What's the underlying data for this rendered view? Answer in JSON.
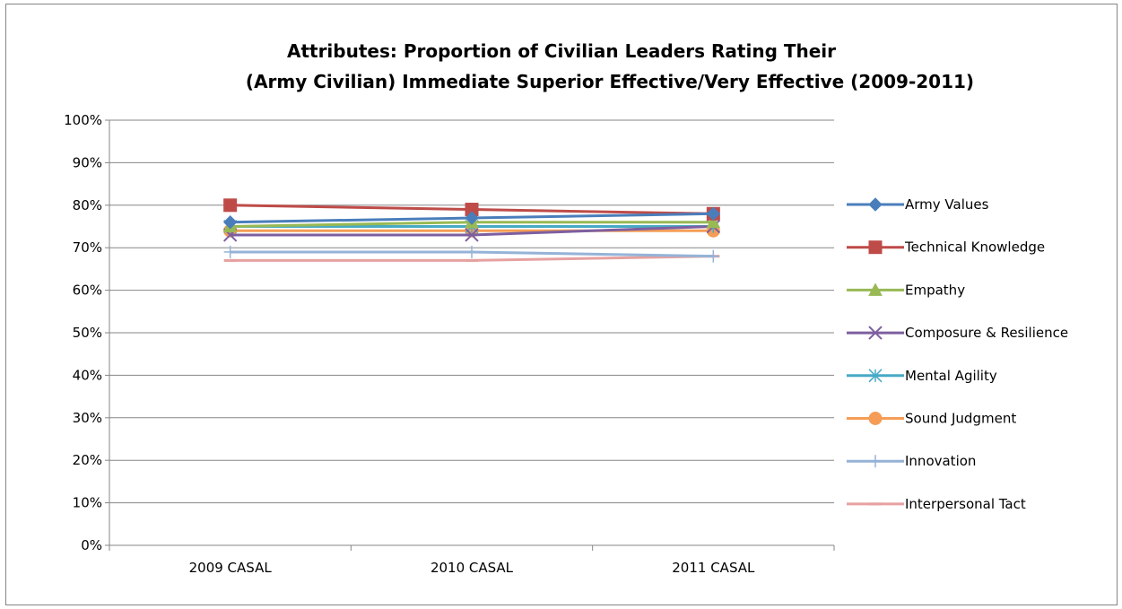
{
  "chart_data": {
    "type": "line",
    "title": "Attributes:  Proportion of Civilian Leaders Rating Their (Army Civilian) Immediate Superior Effective/Very Effective (2009-2011)",
    "title_lines": [
      "Attributes:  Proportion of Civilian Leaders Rating Their",
      "(Army Civilian) Immediate Superior Effective/Very Effective (2009-2011)"
    ],
    "xlabel": "",
    "ylabel": "",
    "categories": [
      "2009 CASAL",
      "2010 CASAL",
      "2011 CASAL"
    ],
    "ylim": [
      0,
      100
    ],
    "y_ticks": [
      "0%",
      "10%",
      "20%",
      "30%",
      "40%",
      "50%",
      "60%",
      "70%",
      "80%",
      "90%",
      "100%"
    ],
    "grid": "horizontal",
    "legend_position": "right",
    "series": [
      {
        "name": "Army Values",
        "values": [
          76,
          77,
          78
        ],
        "color": "#4A7EBB",
        "marker": "diamond"
      },
      {
        "name": "Technical Knowledge",
        "values": [
          80,
          79,
          78
        ],
        "color": "#BE4B48",
        "marker": "square"
      },
      {
        "name": "Empathy",
        "values": [
          75,
          76,
          76
        ],
        "color": "#98B954",
        "marker": "triangle"
      },
      {
        "name": "Composure & Resilience",
        "values": [
          73,
          73,
          75
        ],
        "color": "#7D5FA0",
        "marker": "x"
      },
      {
        "name": "Mental Agility",
        "values": [
          75,
          75,
          75
        ],
        "color": "#46AAC5",
        "marker": "star"
      },
      {
        "name": "Sound Judgment",
        "values": [
          74,
          74,
          74
        ],
        "color": "#F59D56",
        "marker": "circle"
      },
      {
        "name": "Innovation",
        "values": [
          69,
          69,
          68
        ],
        "color": "#95B3D7",
        "marker": "plus"
      },
      {
        "name": "Interpersonal Tact",
        "values": [
          67,
          67,
          68
        ],
        "color": "#E6A1A0",
        "marker": "dash"
      }
    ]
  }
}
